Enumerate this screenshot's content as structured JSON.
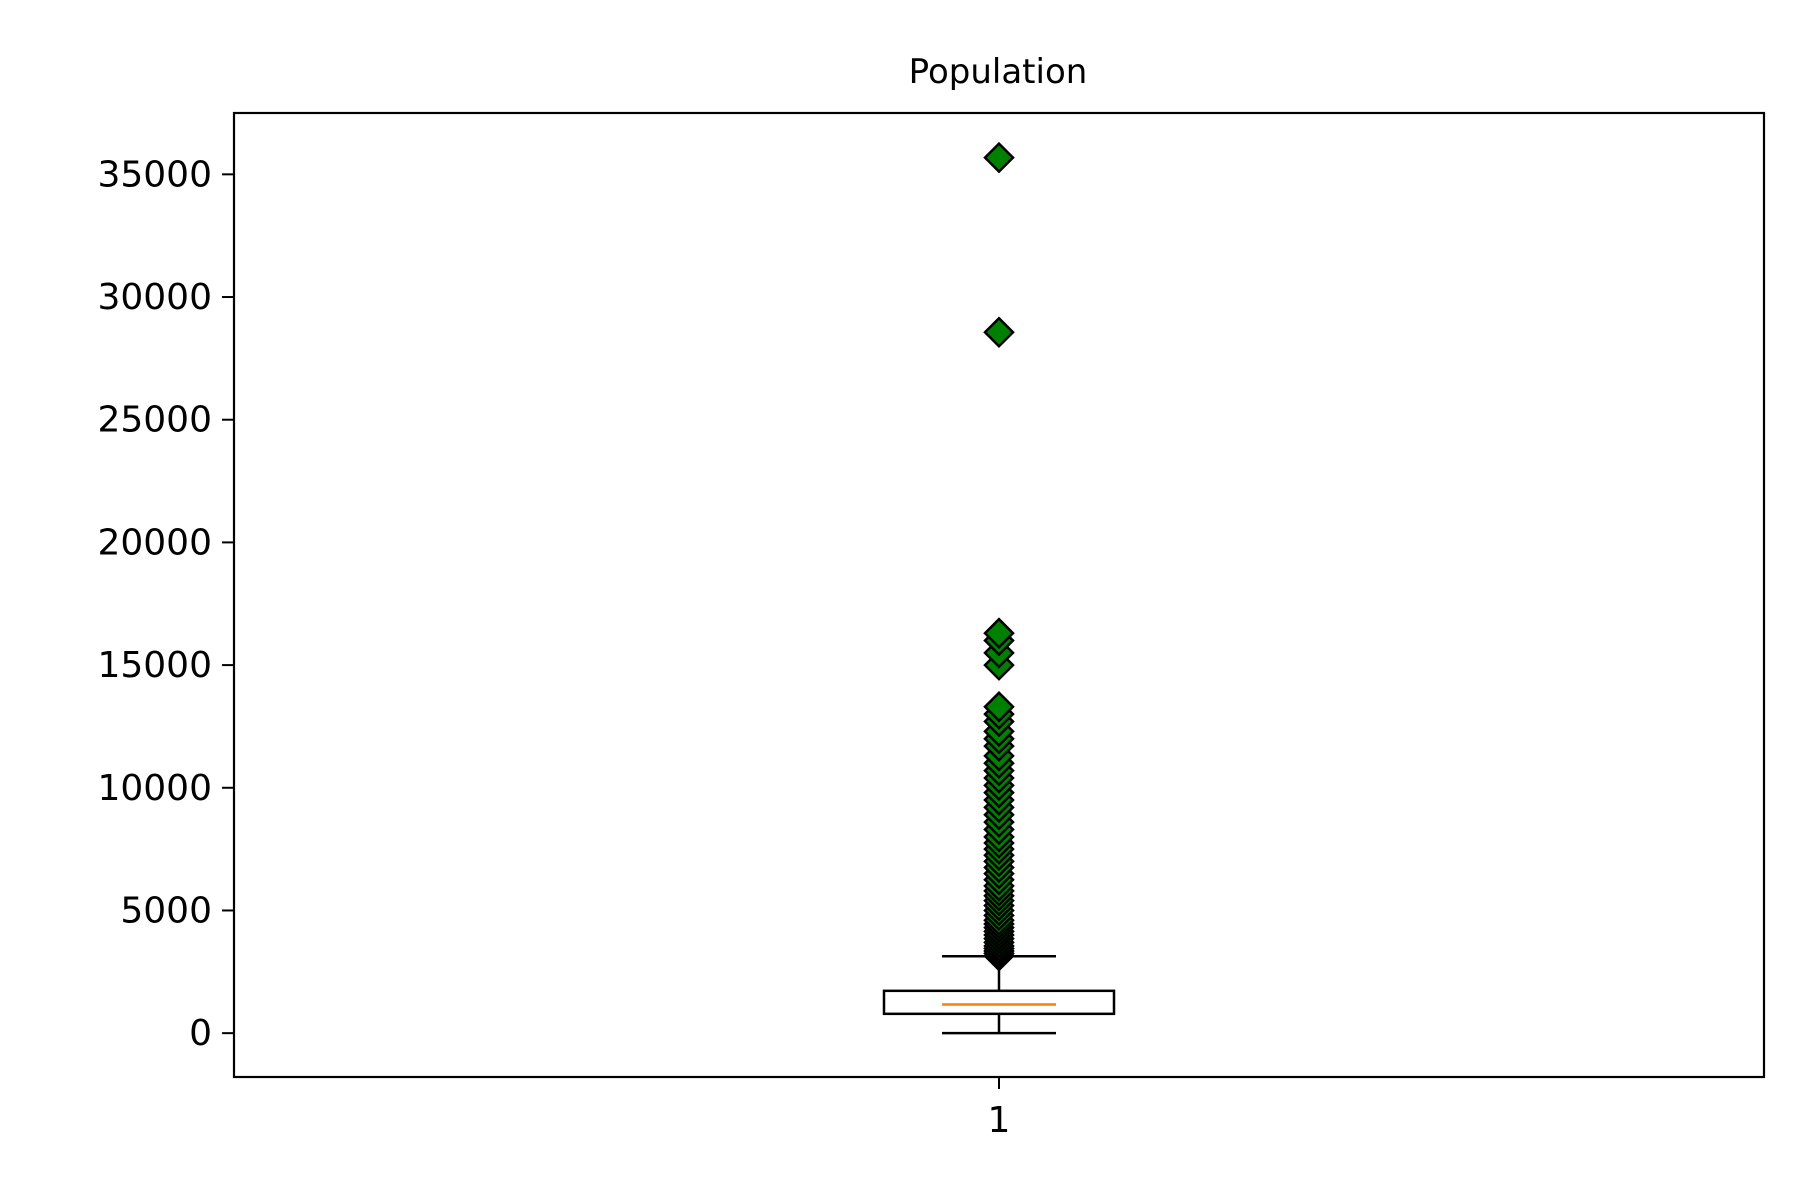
{
  "chart_data": {
    "type": "box",
    "title": "Population",
    "xlabel": "",
    "ylabel": "",
    "categories": [
      "1"
    ],
    "ylim": [
      -1787,
      37500
    ],
    "yticks": [
      0,
      5000,
      10000,
      15000,
      20000,
      25000,
      30000,
      35000
    ],
    "ytick_labels": [
      "0",
      "5000",
      "10000",
      "15000",
      "20000",
      "25000",
      "30000",
      "35000"
    ],
    "grid": false,
    "box": {
      "whisker_low": 3,
      "q1": 787,
      "median": 1166,
      "q3": 1725,
      "whisker_high": 3132
    },
    "outliers": [
      3150,
      3250,
      3350,
      3450,
      3550,
      3700,
      3850,
      4000,
      4150,
      4300,
      4450,
      4600,
      4800,
      5000,
      5200,
      5400,
      5600,
      5800,
      6000,
      6250,
      6500,
      6750,
      7000,
      7250,
      7500,
      7750,
      8000,
      8300,
      8600,
      8900,
      9200,
      9500,
      9800,
      10100,
      10400,
      10700,
      11000,
      11300,
      11700,
      12000,
      12300,
      12700,
      13000,
      13300,
      15000,
      15500,
      16000,
      16300,
      28566,
      35682
    ],
    "colors": {
      "median": "#ff7f0e",
      "outlier_fill": "#008000",
      "outlier_edge": "#000000",
      "box": "#000000"
    }
  }
}
